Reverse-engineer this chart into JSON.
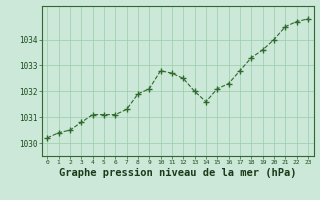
{
  "x": [
    0,
    1,
    2,
    3,
    4,
    5,
    6,
    7,
    8,
    9,
    10,
    11,
    12,
    13,
    14,
    15,
    16,
    17,
    18,
    19,
    20,
    21,
    22,
    23
  ],
  "y": [
    1030.2,
    1030.4,
    1030.5,
    1030.8,
    1031.1,
    1031.1,
    1031.1,
    1031.3,
    1031.9,
    1032.1,
    1032.8,
    1032.7,
    1032.5,
    1032.0,
    1031.6,
    1032.1,
    1032.3,
    1032.8,
    1033.3,
    1033.6,
    1034.0,
    1034.5,
    1034.7,
    1034.8
  ],
  "line_color": "#2d6a2d",
  "marker_color": "#2d6a2d",
  "bg_color": "#cce8d8",
  "grid_color": "#99ccaa",
  "xlabel": "Graphe pression niveau de la mer (hPa)",
  "xlabel_fontsize": 7.5,
  "ylabel_ticks": [
    1030,
    1031,
    1032,
    1033,
    1034
  ],
  "ylim": [
    1029.5,
    1035.3
  ],
  "xlim": [
    -0.5,
    23.5
  ],
  "xtick_labels": [
    "0",
    "1",
    "2",
    "3",
    "4",
    "5",
    "6",
    "7",
    "8",
    "9",
    "10",
    "11",
    "12",
    "13",
    "14",
    "15",
    "16",
    "17",
    "18",
    "19",
    "20",
    "21",
    "22",
    "23"
  ]
}
